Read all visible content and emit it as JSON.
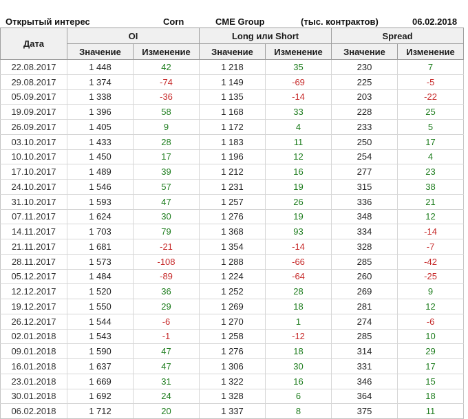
{
  "title_bar": {
    "title": "Открытый интерес",
    "instrument": "Corn",
    "exchange": "CME Group",
    "units": "(тыс. контрактов)",
    "report_date": "06.02.2018"
  },
  "table": {
    "date_header": "Дата",
    "groups": [
      {
        "label": "OI"
      },
      {
        "label": "Long или Short"
      },
      {
        "label": "Spread"
      }
    ],
    "sub_headers": [
      "Значение",
      "Изменение"
    ]
  },
  "colors": {
    "positive_change": "#1e7d1e",
    "negative_change": "#c62828",
    "header_bg": "#f0f0f0",
    "grid_line": "#d6d6d6"
  },
  "chart_data": {
    "type": "table",
    "title": "Открытый интерес",
    "subtitle_items": [
      "Corn",
      "CME Group",
      "(тыс. контрактов)",
      "06.02.2018"
    ],
    "column_groups": [
      "Дата",
      "OI",
      "Long или Short",
      "Spread"
    ],
    "columns": [
      "Дата",
      "OI Значение",
      "OI Изменение",
      "Long или Short Значение",
      "Long или Short Изменение",
      "Spread Значение",
      "Spread Изменение"
    ],
    "rows": [
      [
        "22.08.2017",
        "1 448",
        42,
        "1 218",
        35,
        "230",
        7
      ],
      [
        "29.08.2017",
        "1 374",
        -74,
        "1 149",
        -69,
        "225",
        -5
      ],
      [
        "05.09.2017",
        "1 338",
        -36,
        "1 135",
        -14,
        "203",
        -22
      ],
      [
        "19.09.2017",
        "1 396",
        58,
        "1 168",
        33,
        "228",
        25
      ],
      [
        "26.09.2017",
        "1 405",
        9,
        "1 172",
        4,
        "233",
        5
      ],
      [
        "03.10.2017",
        "1 433",
        28,
        "1 183",
        11,
        "250",
        17
      ],
      [
        "10.10.2017",
        "1 450",
        17,
        "1 196",
        12,
        "254",
        4
      ],
      [
        "17.10.2017",
        "1 489",
        39,
        "1 212",
        16,
        "277",
        23
      ],
      [
        "24.10.2017",
        "1 546",
        57,
        "1 231",
        19,
        "315",
        38
      ],
      [
        "31.10.2017",
        "1 593",
        47,
        "1 257",
        26,
        "336",
        21
      ],
      [
        "07.11.2017",
        "1 624",
        30,
        "1 276",
        19,
        "348",
        12
      ],
      [
        "14.11.2017",
        "1 703",
        79,
        "1 368",
        93,
        "334",
        -14
      ],
      [
        "21.11.2017",
        "1 681",
        -21,
        "1 354",
        -14,
        "328",
        -7
      ],
      [
        "28.11.2017",
        "1 573",
        -108,
        "1 288",
        -66,
        "285",
        -42
      ],
      [
        "05.12.2017",
        "1 484",
        -89,
        "1 224",
        -64,
        "260",
        -25
      ],
      [
        "12.12.2017",
        "1 520",
        36,
        "1 252",
        28,
        "269",
        9
      ],
      [
        "19.12.2017",
        "1 550",
        29,
        "1 269",
        18,
        "281",
        12
      ],
      [
        "26.12.2017",
        "1 544",
        -6,
        "1 270",
        1,
        "274",
        -6
      ],
      [
        "02.01.2018",
        "1 543",
        -1,
        "1 258",
        -12,
        "285",
        10
      ],
      [
        "09.01.2018",
        "1 590",
        47,
        "1 276",
        18,
        "314",
        29
      ],
      [
        "16.01.2018",
        "1 637",
        47,
        "1 306",
        30,
        "331",
        17
      ],
      [
        "23.01.2018",
        "1 669",
        31,
        "1 322",
        16,
        "346",
        15
      ],
      [
        "30.01.2018",
        "1 692",
        24,
        "1 328",
        6,
        "364",
        18
      ],
      [
        "06.02.2018",
        "1 712",
        20,
        "1 337",
        8,
        "375",
        11
      ]
    ]
  }
}
